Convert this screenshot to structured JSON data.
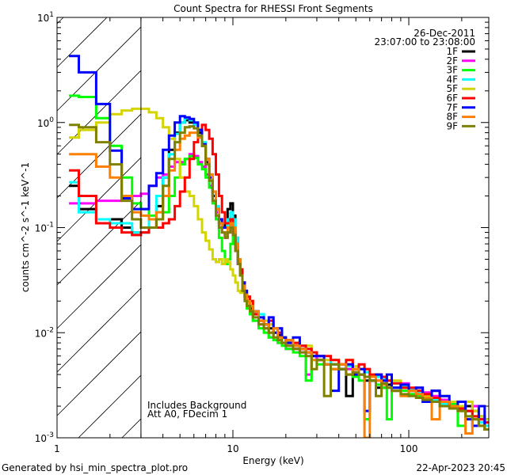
{
  "chart_data": {
    "type": "line",
    "title": "Count Spectra for RHESSI Front Segments",
    "xlabel": "Energy (keV)",
    "ylabel": "counts cm^-2 s^-1 keV^-1",
    "xscale": "log",
    "yscale": "log",
    "xlim": [
      1,
      285
    ],
    "ylim": [
      0.001,
      10
    ],
    "x_tick_labels": [
      {
        "value": 1,
        "label": "1"
      },
      {
        "value": 10,
        "label": "10"
      },
      {
        "value": 100,
        "label": "100"
      }
    ],
    "y_tick_labels": [
      {
        "value": 10,
        "base": "10",
        "exp": "1"
      },
      {
        "value": 1,
        "base": "10",
        "exp": "0"
      },
      {
        "value": 0.1,
        "base": "10",
        "exp": "-1"
      },
      {
        "value": 0.01,
        "base": "10",
        "exp": "-2"
      },
      {
        "value": 0.001,
        "base": "10",
        "exp": "-3"
      }
    ],
    "date": "26-Dec-2011",
    "time_range": "23:07:00 to 23:08:00",
    "shaded_region_keV": [
      1,
      3
    ],
    "annotations": [
      "Includes Background",
      "Att A0, FDecim 1"
    ],
    "legend_position": "top-right",
    "energy_edges": [
      1.17,
      1.33,
      1.67,
      2.0,
      2.33,
      2.67,
      3.0,
      3.33,
      3.67,
      4.0,
      4.33,
      4.67,
      5.0,
      5.33,
      5.67,
      6.0,
      6.33,
      6.67,
      7.0,
      7.33,
      7.67,
      8.0,
      8.33,
      8.67,
      9.0,
      9.33,
      9.67,
      10,
      10.33,
      10.67,
      11,
      11.33,
      11.67,
      12,
      12.5,
      13,
      14,
      15,
      16,
      17,
      18,
      19,
      20,
      22,
      24,
      26,
      28,
      30,
      33,
      36,
      40,
      44,
      48,
      52,
      56,
      60,
      65,
      70,
      75,
      80,
      90,
      100,
      110,
      120,
      135,
      150,
      170,
      190,
      210,
      230,
      250,
      270,
      290
    ],
    "series": [
      {
        "name": "1F",
        "color": "#000000",
        "values": [
          0.25,
          0.15,
          0.12,
          0.12,
          0.1,
          0.09,
          0.09,
          0.1,
          0.16,
          0.3,
          0.55,
          0.8,
          1.0,
          1.05,
          1.0,
          0.95,
          0.8,
          0.6,
          0.42,
          0.28,
          0.2,
          0.15,
          0.12,
          0.1,
          0.11,
          0.15,
          0.17,
          0.13,
          0.08,
          0.05,
          0.035,
          0.028,
          0.022,
          0.02,
          0.017,
          0.015,
          0.013,
          0.012,
          0.011,
          0.01,
          0.0095,
          0.009,
          0.008,
          0.0075,
          0.007,
          0.0065,
          0.006,
          0.0055,
          0.005,
          0.005,
          0.0045,
          0.0025,
          0.004,
          0.004,
          0.0035,
          0.0035,
          0.003,
          0.003,
          0.0032,
          0.0028,
          0.003,
          0.0028,
          0.0026,
          0.0024,
          0.0028,
          0.0022,
          0.002,
          0.0022,
          0.002,
          0.0018,
          0.0016,
          0.0015
        ]
      },
      {
        "name": "2F",
        "color": "#ff00ff",
        "values": [
          0.17,
          0.17,
          0.18,
          0.18,
          0.19,
          0.2,
          0.21,
          0.25,
          0.3,
          0.32,
          0.38,
          0.42,
          0.42,
          0.45,
          0.5,
          0.48,
          0.42,
          0.38,
          0.32,
          0.25,
          0.18,
          0.14,
          0.11,
          0.09,
          0.08,
          0.09,
          0.1,
          0.09,
          0.06,
          0.045,
          0.035,
          0.03,
          0.024,
          0.018,
          0.015,
          0.013,
          0.012,
          0.011,
          0.009,
          0.01,
          0.008,
          0.009,
          0.007,
          0.007,
          0.0065,
          0.004,
          0.006,
          0.0055,
          0.005,
          0.0045,
          0.005,
          0.0045,
          0.0042,
          0.004,
          0.0045,
          0.0038,
          0.0035,
          0.0033,
          0.0035,
          0.003,
          0.0033,
          0.0028,
          0.003,
          0.0027,
          0.0025,
          0.0023,
          0.0022,
          0.002,
          0.0018,
          0.002,
          0.0015,
          0.0014
        ]
      },
      {
        "name": "3F",
        "color": "#00ff00",
        "values": [
          1.8,
          1.75,
          1.1,
          0.6,
          0.3,
          0.17,
          0.15,
          0.13,
          0.12,
          0.14,
          0.2,
          0.3,
          0.4,
          0.45,
          0.48,
          0.46,
          0.4,
          0.36,
          0.3,
          0.24,
          0.17,
          0.12,
          0.08,
          0.06,
          0.045,
          0.05,
          0.07,
          0.1,
          0.07,
          0.05,
          0.035,
          0.028,
          0.022,
          0.017,
          0.015,
          0.013,
          0.011,
          0.01,
          0.009,
          0.0085,
          0.008,
          0.0075,
          0.007,
          0.0065,
          0.006,
          0.0035,
          0.0055,
          0.005,
          0.005,
          0.0045,
          0.0045,
          0.004,
          0.0038,
          0.0035,
          0.0015,
          0.0035,
          0.0032,
          0.003,
          0.0015,
          0.003,
          0.0028,
          0.0026,
          0.0025,
          0.0024,
          0.0022,
          0.0022,
          0.0021,
          0.0013,
          0.0018,
          0.0016,
          0.0014,
          0.0012
        ]
      },
      {
        "name": "4F",
        "color": "#00ffff",
        "values": [
          0.27,
          0.14,
          0.12,
          0.11,
          0.11,
          0.09,
          0.09,
          0.12,
          0.2,
          0.3,
          0.5,
          0.78,
          1.0,
          1.1,
          1.05,
          0.95,
          0.85,
          0.65,
          0.45,
          0.32,
          0.22,
          0.16,
          0.12,
          0.1,
          0.1,
          0.12,
          0.14,
          0.12,
          0.08,
          0.05,
          0.035,
          0.028,
          0.022,
          0.019,
          0.016,
          0.016,
          0.015,
          0.013,
          0.012,
          0.011,
          0.01,
          0.009,
          0.0085,
          0.008,
          0.0075,
          0.007,
          0.0065,
          0.006,
          0.0055,
          0.005,
          0.005,
          0.0048,
          0.0045,
          0.0045,
          0.0042,
          0.004,
          0.0038,
          0.0036,
          0.0035,
          0.0033,
          0.0031,
          0.0029,
          0.0027,
          0.0025,
          0.0023,
          0.0021,
          0.002,
          0.0018,
          0.0016,
          0.0015,
          0.0014,
          0.0013
        ]
      },
      {
        "name": "5F",
        "color": "#d4d400",
        "values": [
          0.72,
          0.85,
          1.0,
          1.2,
          1.3,
          1.35,
          1.35,
          1.25,
          1.1,
          0.9,
          0.7,
          0.45,
          0.3,
          0.22,
          0.2,
          0.16,
          0.12,
          0.09,
          0.075,
          0.062,
          0.05,
          0.047,
          0.05,
          0.045,
          0.05,
          0.047,
          0.04,
          0.035,
          0.03,
          0.025,
          0.024,
          0.028,
          0.024,
          0.022,
          0.02,
          0.016,
          0.014,
          0.013,
          0.012,
          0.01,
          0.011,
          0.009,
          0.0085,
          0.008,
          0.007,
          0.0075,
          0.0065,
          0.006,
          0.0055,
          0.0055,
          0.005,
          0.0055,
          0.0048,
          0.0045,
          0.0045,
          0.004,
          0.004,
          0.0038,
          0.0035,
          0.0035,
          0.003,
          0.0028,
          0.003,
          0.0025,
          0.0024,
          0.0025,
          0.0022,
          0.002,
          0.0022,
          0.0018,
          0.0016,
          0.0015
        ]
      },
      {
        "name": "6F",
        "color": "#ff0000",
        "values": [
          0.35,
          0.2,
          0.11,
          0.1,
          0.09,
          0.085,
          0.09,
          0.1,
          0.1,
          0.11,
          0.12,
          0.16,
          0.22,
          0.3,
          0.45,
          0.65,
          0.85,
          0.95,
          0.85,
          0.7,
          0.5,
          0.32,
          0.2,
          0.14,
          0.11,
          0.11,
          0.12,
          0.1,
          0.07,
          0.05,
          0.04,
          0.03,
          0.025,
          0.022,
          0.02,
          0.015,
          0.013,
          0.012,
          0.013,
          0.011,
          0.01,
          0.009,
          0.0085,
          0.008,
          0.0075,
          0.007,
          0.0065,
          0.006,
          0.006,
          0.0055,
          0.005,
          0.0055,
          0.0045,
          0.005,
          0.0045,
          0.004,
          0.004,
          0.0038,
          0.0035,
          0.0033,
          0.003,
          0.003,
          0.0028,
          0.0026,
          0.0024,
          0.0022,
          0.002,
          0.0019,
          0.0018,
          0.0016,
          0.0015,
          0.0014
        ]
      },
      {
        "name": "7F",
        "color": "#0000ff",
        "values": [
          4.3,
          3.0,
          1.5,
          0.54,
          0.19,
          0.15,
          0.15,
          0.25,
          0.33,
          0.55,
          0.75,
          1.0,
          1.15,
          1.12,
          1.08,
          1.0,
          0.85,
          0.62,
          0.45,
          0.3,
          0.22,
          0.15,
          0.12,
          0.1,
          0.1,
          0.1,
          0.11,
          0.09,
          0.06,
          0.045,
          0.035,
          0.03,
          0.025,
          0.02,
          0.018,
          0.016,
          0.014,
          0.012,
          0.014,
          0.01,
          0.011,
          0.009,
          0.008,
          0.009,
          0.007,
          0.0065,
          0.006,
          0.006,
          0.005,
          0.0028,
          0.0045,
          0.005,
          0.004,
          0.0045,
          0.0018,
          0.0035,
          0.004,
          0.0035,
          0.004,
          0.003,
          0.0032,
          0.0028,
          0.003,
          0.0022,
          0.0028,
          0.0025,
          0.002,
          0.0022,
          0.0015,
          0.0013,
          0.002,
          0.0012
        ]
      },
      {
        "name": "8F",
        "color": "#ff8000",
        "values": [
          0.5,
          0.5,
          0.38,
          0.3,
          0.2,
          0.14,
          0.13,
          0.12,
          0.14,
          0.2,
          0.35,
          0.55,
          0.7,
          0.75,
          0.8,
          0.8,
          0.72,
          0.6,
          0.45,
          0.32,
          0.22,
          0.15,
          0.11,
          0.09,
          0.09,
          0.1,
          0.11,
          0.1,
          0.07,
          0.05,
          0.035,
          0.028,
          0.023,
          0.02,
          0.018,
          0.016,
          0.013,
          0.012,
          0.01,
          0.011,
          0.009,
          0.008,
          0.0085,
          0.0075,
          0.007,
          0.0065,
          0.0055,
          0.0055,
          0.005,
          0.0045,
          0.005,
          0.004,
          0.0045,
          0.004,
          0.001,
          0.0038,
          0.0035,
          0.0032,
          0.003,
          0.0028,
          0.0025,
          0.0028,
          0.0026,
          0.0024,
          0.0015,
          0.0022,
          0.002,
          0.0018,
          0.0011,
          0.0015,
          0.0013,
          0.0012
        ]
      },
      {
        "name": "9F",
        "color": "#808000",
        "values": [
          0.95,
          0.9,
          0.65,
          0.4,
          0.18,
          0.12,
          0.1,
          0.1,
          0.12,
          0.25,
          0.45,
          0.65,
          0.8,
          0.9,
          0.92,
          0.88,
          0.75,
          0.6,
          0.4,
          0.28,
          0.18,
          0.13,
          0.1,
          0.09,
          0.08,
          0.09,
          0.1,
          0.085,
          0.06,
          0.045,
          0.035,
          0.025,
          0.02,
          0.018,
          0.016,
          0.014,
          0.012,
          0.011,
          0.01,
          0.009,
          0.0085,
          0.008,
          0.0075,
          0.007,
          0.0065,
          0.006,
          0.0045,
          0.0055,
          0.0025,
          0.005,
          0.0045,
          0.004,
          0.0042,
          0.004,
          0.0038,
          0.0035,
          0.0025,
          0.0033,
          0.003,
          0.0028,
          0.0026,
          0.0025,
          0.0024,
          0.0023,
          0.0022,
          0.002,
          0.0019,
          0.0018,
          0.0016,
          0.0015,
          0.0013,
          0.0012
        ]
      }
    ]
  },
  "footer": {
    "generated_by": "Generated by hsi_min_spectra_plot.pro",
    "timestamp": "22-Apr-2023 20:45"
  }
}
